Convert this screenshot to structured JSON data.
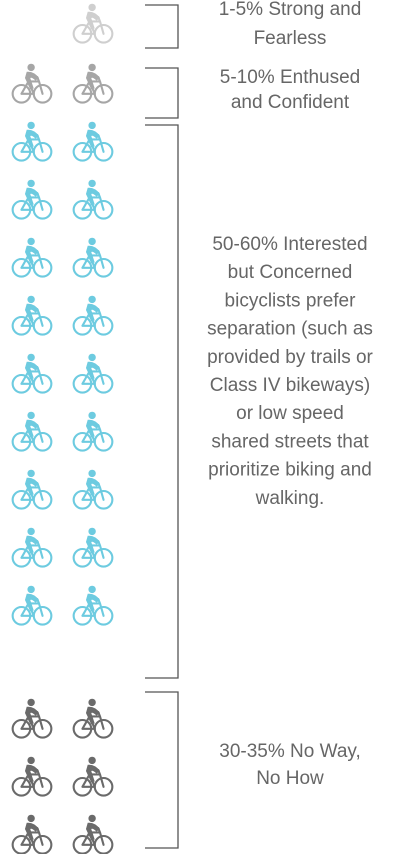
{
  "groups": [
    {
      "lines": [
        "1-5% Strong and",
        "Fearless"
      ],
      "color": "#cfcfcf"
    },
    {
      "lines": [
        "5-10% Enthused",
        "and Confident"
      ],
      "color": "#a6a6a6"
    },
    {
      "lines": [
        "50-60% Interested",
        "but Concerned",
        "bicyclists prefer",
        "separation (such as",
        "provided by trails or",
        "Class IV bikeways)",
        "or low speed",
        "shared streets that",
        "prioritize biking and",
        "walking."
      ],
      "color": "#6dcbe0"
    },
    {
      "lines": [
        "30-35% No Way,",
        "No How"
      ],
      "color": "#6a6a6a"
    }
  ]
}
